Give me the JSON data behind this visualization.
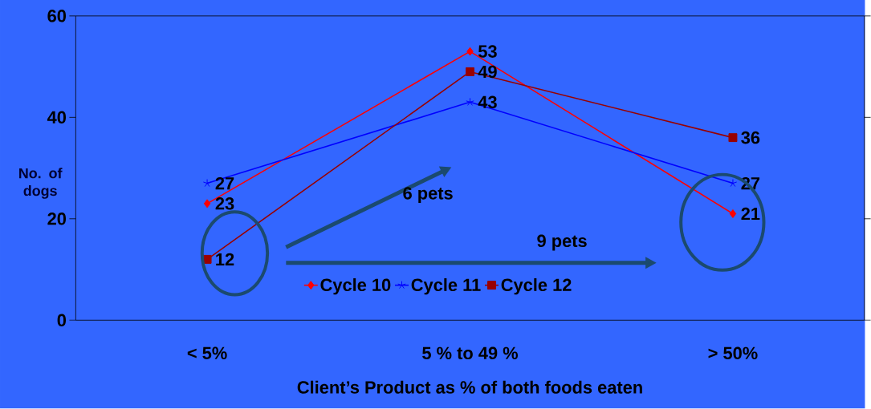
{
  "chart_data": {
    "type": "line",
    "xlabel": "Client’s Product as % of both foods eaten",
    "ylabel": "No. of dogs",
    "categories": [
      "< 5%",
      "5 % to 49 %",
      "> 50%"
    ],
    "series": [
      {
        "name": "Cycle 10",
        "color": "#ff0000",
        "marker": "diamond",
        "values": [
          23,
          53,
          21
        ]
      },
      {
        "name": "Cycle 11",
        "color": "#0000ff",
        "marker": "cross",
        "values": [
          27,
          43,
          27
        ]
      },
      {
        "name": "Cycle 12",
        "color": "#990000",
        "marker": "square",
        "values": [
          12,
          49,
          36
        ]
      }
    ],
    "ylim": [
      0,
      60
    ],
    "yticks": [
      0,
      20,
      40,
      60
    ],
    "data_labels": true,
    "legend": "bottom",
    "grid": false,
    "annotations": [
      "6 pets",
      "9 pets"
    ]
  }
}
